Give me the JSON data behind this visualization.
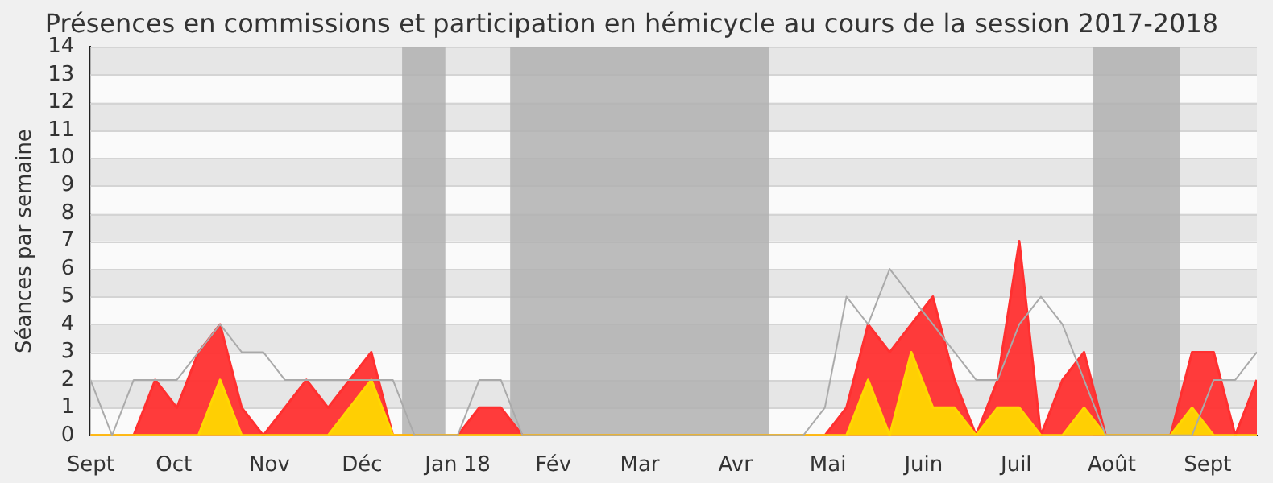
{
  "chart_data": {
    "type": "area",
    "title": "Présences en commissions et participation en hémicycle au cours de la session 2017-2018",
    "ylabel": "Séances par semaine",
    "x": [
      "2017-09-04",
      "2017-09-11",
      "2017-09-18",
      "2017-09-25",
      "2017-10-02",
      "2017-10-09",
      "2017-10-16",
      "2017-10-23",
      "2017-10-30",
      "2017-11-06",
      "2017-11-13",
      "2017-11-20",
      "2017-11-27",
      "2017-12-04",
      "2017-12-11",
      "2017-12-18",
      "2017-12-25",
      "2018-01-01",
      "2018-01-08",
      "2018-01-15",
      "2018-01-22",
      "2018-01-29",
      "2018-02-05",
      "2018-02-12",
      "2018-02-19",
      "2018-02-26",
      "2018-03-05",
      "2018-03-12",
      "2018-03-19",
      "2018-03-26",
      "2018-04-02",
      "2018-04-09",
      "2018-04-16",
      "2018-04-23",
      "2018-04-30",
      "2018-05-07",
      "2018-05-14",
      "2018-05-21",
      "2018-05-28",
      "2018-06-04",
      "2018-06-11",
      "2018-06-18",
      "2018-06-25",
      "2018-07-02",
      "2018-07-09",
      "2018-07-16",
      "2018-07-23",
      "2018-07-30",
      "2018-08-06",
      "2018-08-13",
      "2018-08-20",
      "2018-08-27",
      "2018-09-03",
      "2018-09-10",
      "2018-09-17"
    ],
    "series": [
      {
        "type": "line",
        "color": "#aaaaaa",
        "values": [
          2,
          0,
          2,
          2,
          2,
          3,
          4,
          3,
          3,
          2,
          2,
          2,
          2,
          2,
          2,
          0,
          0,
          0,
          2,
          2,
          0,
          0,
          0,
          0,
          0,
          0,
          0,
          0,
          0,
          0,
          0,
          0,
          0,
          0,
          1,
          5,
          4,
          6,
          5,
          4,
          3,
          2,
          2,
          4,
          5,
          4,
          2,
          0,
          0,
          0,
          0,
          0,
          2,
          2,
          3
        ]
      },
      {
        "color": "#ff3030",
        "values": [
          0,
          0,
          0,
          2,
          1,
          3,
          4,
          1,
          0,
          1,
          2,
          1,
          2,
          3,
          0,
          0,
          0,
          0,
          1,
          1,
          0,
          0,
          0,
          0,
          0,
          0,
          0,
          0,
          0,
          0,
          0,
          0,
          0,
          0,
          0,
          1,
          4,
          3,
          4,
          5,
          2,
          0,
          2,
          7,
          0,
          2,
          3,
          0,
          0,
          0,
          0,
          3,
          3,
          0,
          2
        ]
      },
      {
        "color": "#ffd700",
        "values": [
          0,
          0,
          0,
          0,
          0,
          0,
          2,
          0,
          0,
          0,
          0,
          0,
          1,
          2,
          0,
          0,
          0,
          0,
          0,
          0,
          0,
          0,
          0,
          0,
          0,
          0,
          0,
          0,
          0,
          0,
          0,
          0,
          0,
          0,
          0,
          0,
          2,
          0,
          3,
          1,
          1,
          0,
          1,
          1,
          0,
          0,
          1,
          0,
          0,
          0,
          0,
          1,
          0,
          0,
          0
        ]
      }
    ],
    "xlim": [
      "2017-09-04",
      "2018-09-17"
    ],
    "xticks": [
      {
        "value": "2017-09-04",
        "label": "Sept"
      },
      {
        "value": "2017-10-01",
        "label": "Oct"
      },
      {
        "value": "2017-11-01",
        "label": "Nov"
      },
      {
        "value": "2017-12-01",
        "label": "Déc"
      },
      {
        "value": "2018-01-01",
        "label": "Jan 18"
      },
      {
        "value": "2018-02-01",
        "label": "Fév"
      },
      {
        "value": "2018-03-01",
        "label": "Mar"
      },
      {
        "value": "2018-04-01",
        "label": "Avr"
      },
      {
        "value": "2018-05-01",
        "label": "Mai"
      },
      {
        "value": "2018-06-01",
        "label": "Juin"
      },
      {
        "value": "2018-07-01",
        "label": "Juil"
      },
      {
        "value": "2018-08-01",
        "label": "Août"
      },
      {
        "value": "2018-09-01",
        "label": "Sept"
      }
    ],
    "ylim": [
      0,
      14
    ],
    "yticks": [
      0,
      1,
      2,
      3,
      4,
      5,
      6,
      7,
      8,
      9,
      10,
      11,
      12,
      13,
      14
    ],
    "bands": [
      {
        "axis": "x",
        "from": "2017-12-14",
        "to": "2017-12-28",
        "color": "#b0b0b0"
      },
      {
        "axis": "x",
        "from": "2018-01-18",
        "to": "2018-04-12",
        "color": "#b0b0b0"
      },
      {
        "axis": "x",
        "from": "2018-07-26",
        "to": "2018-08-23",
        "color": "#b0b0b0"
      }
    ],
    "grid": true,
    "legend": false,
    "marker": "none"
  }
}
